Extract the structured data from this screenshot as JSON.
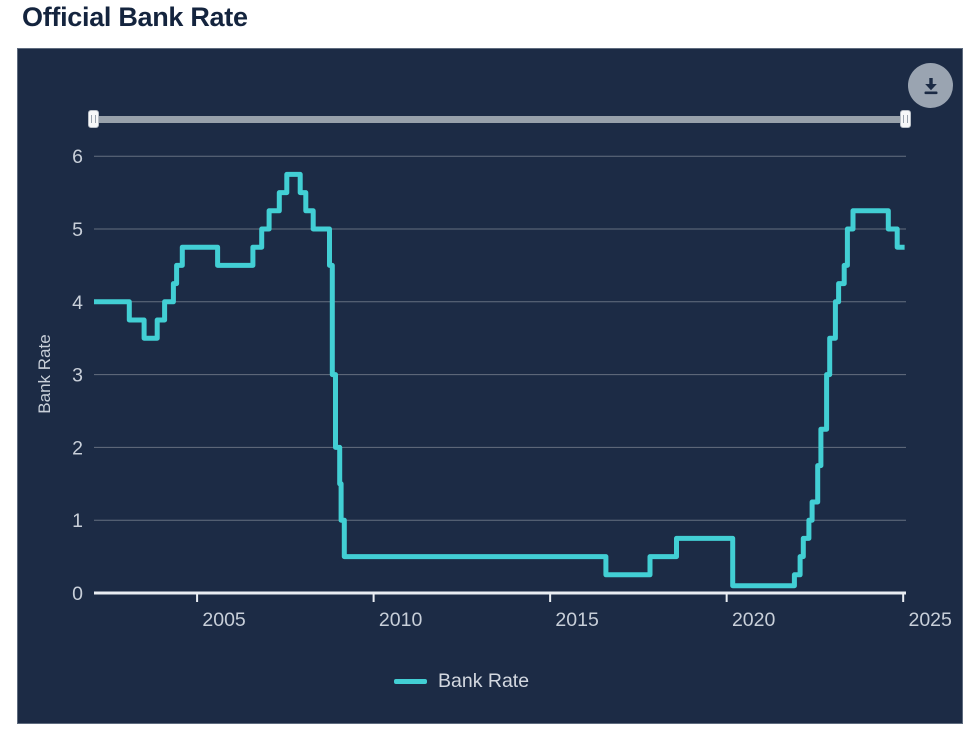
{
  "title": "Official Bank Rate",
  "theme": {
    "panel_background": "#1c2b45",
    "line_color": "#42cfd4",
    "axis_text_color": "#c8cfd9",
    "title_color": "#14243e",
    "slider_track_color": "#98a1ab",
    "download_button_color": "#9aa4b1"
  },
  "toolbar": {
    "download_icon": "download-arrow"
  },
  "slider": {
    "left_handle_icon": "grip-lines",
    "right_handle_icon": "grip-lines"
  },
  "legend": {
    "items": [
      {
        "label": "Bank Rate",
        "color": "#42cfd4"
      }
    ]
  },
  "chart_data": {
    "type": "line",
    "title": "Official Bank Rate",
    "xlabel": "",
    "ylabel": "Bank Rate",
    "yticks": [
      0,
      1,
      2,
      3,
      4,
      5,
      6
    ],
    "xticks": [
      2005,
      2010,
      2015,
      2020,
      2025
    ],
    "ylim": [
      0,
      6.07
    ],
    "xlim": [
      2002.08,
      2025.08
    ],
    "grid": true,
    "legend_position": "bottom-center",
    "step": true,
    "series": [
      {
        "name": "Bank Rate",
        "color": "#42cfd4",
        "points": [
          [
            2002.08,
            4.0
          ],
          [
            2003.08,
            3.75
          ],
          [
            2003.5,
            3.5
          ],
          [
            2003.87,
            3.75
          ],
          [
            2004.08,
            4.0
          ],
          [
            2004.33,
            4.25
          ],
          [
            2004.42,
            4.5
          ],
          [
            2004.58,
            4.75
          ],
          [
            2005.58,
            4.5
          ],
          [
            2006.58,
            4.75
          ],
          [
            2006.83,
            5.0
          ],
          [
            2007.04,
            5.25
          ],
          [
            2007.33,
            5.5
          ],
          [
            2007.54,
            5.75
          ],
          [
            2007.92,
            5.5
          ],
          [
            2008.08,
            5.25
          ],
          [
            2008.29,
            5.0
          ],
          [
            2008.75,
            4.5
          ],
          [
            2008.83,
            3.0
          ],
          [
            2008.92,
            2.0
          ],
          [
            2009.04,
            1.5
          ],
          [
            2009.08,
            1.0
          ],
          [
            2009.17,
            0.5
          ],
          [
            2016.58,
            0.25
          ],
          [
            2017.83,
            0.5
          ],
          [
            2018.58,
            0.75
          ],
          [
            2020.17,
            0.1
          ],
          [
            2021.92,
            0.25
          ],
          [
            2022.08,
            0.5
          ],
          [
            2022.17,
            0.75
          ],
          [
            2022.33,
            1.0
          ],
          [
            2022.42,
            1.25
          ],
          [
            2022.58,
            1.75
          ],
          [
            2022.67,
            2.25
          ],
          [
            2022.83,
            3.0
          ],
          [
            2022.92,
            3.5
          ],
          [
            2023.08,
            4.0
          ],
          [
            2023.17,
            4.25
          ],
          [
            2023.33,
            4.5
          ],
          [
            2023.42,
            5.0
          ],
          [
            2023.58,
            5.25
          ],
          [
            2024.58,
            5.0
          ],
          [
            2024.83,
            4.75
          ],
          [
            2025.04,
            4.75
          ]
        ]
      }
    ]
  }
}
